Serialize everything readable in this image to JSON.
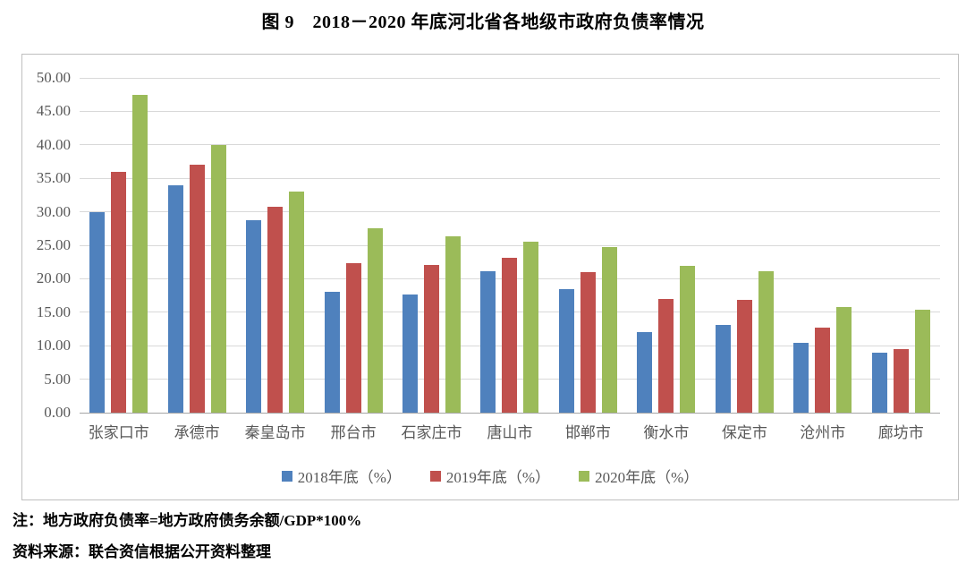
{
  "page": {
    "note": "注：地方政府负债率=地方政府债务余额/GDP*100%",
    "source": "资料来源：联合资信根据公开资料整理"
  },
  "chart_data": {
    "type": "bar",
    "title": "图 9　2018－2020 年底河北省各地级市政府负债率情况",
    "categories": [
      "张家口市",
      "承德市",
      "秦皇岛市",
      "邢台市",
      "石家庄市",
      "唐山市",
      "邯郸市",
      "衡水市",
      "保定市",
      "沧州市",
      "廊坊市"
    ],
    "series": [
      {
        "name": "2018年底（%）",
        "color": "#4F81BD",
        "values": [
          30.0,
          33.9,
          28.7,
          18.1,
          17.7,
          21.1,
          18.5,
          12.0,
          13.1,
          10.4,
          9.0
        ]
      },
      {
        "name": "2019年底（%）",
        "color": "#C0504D",
        "values": [
          35.9,
          37.0,
          30.8,
          22.3,
          22.1,
          23.1,
          21.0,
          17.0,
          16.9,
          12.7,
          9.5
        ]
      },
      {
        "name": "2020年底（%）",
        "color": "#9BBB59",
        "values": [
          47.5,
          40.0,
          33.0,
          27.5,
          26.3,
          25.6,
          24.7,
          21.9,
          21.1,
          15.8,
          15.4
        ]
      }
    ],
    "xlabel": "",
    "ylabel": "",
    "ylim": [
      0,
      50
    ],
    "ytick_step": 5,
    "yticks": [
      "0.00",
      "5.00",
      "10.00",
      "15.00",
      "20.00",
      "25.00",
      "30.00",
      "35.00",
      "40.00",
      "45.00",
      "50.00"
    ],
    "grid": true,
    "legend_position": "bottom",
    "axis_color": "#A6A6A6",
    "gridline_color": "#D9D9D9",
    "label_color": "#595959",
    "border_color": "#BFBFBF"
  }
}
